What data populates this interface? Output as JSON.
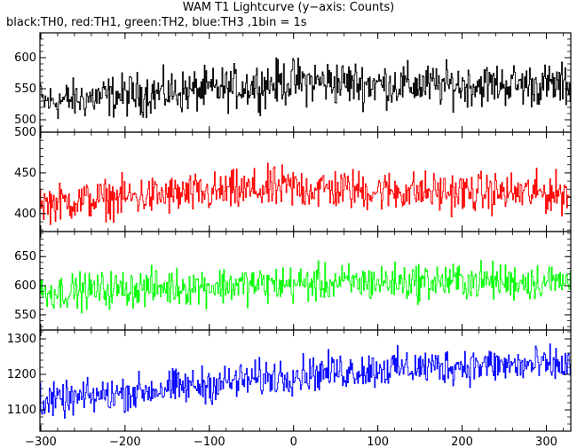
{
  "title": "WAM T1 Lightcurve (y−axis: Counts)",
  "subtitle": "black:TH0, red:TH1, green:TH2, blue:TH3 ,1bin = 1s",
  "chart_data": {
    "type": "line",
    "xlim": [
      -301,
      329
    ],
    "xticks": [
      "−300",
      "−200",
      "−100",
      "0",
      "100",
      "200",
      "300"
    ],
    "xtick_values": [
      -300,
      -200,
      -100,
      0,
      100,
      200,
      300
    ],
    "panels": [
      {
        "series": "TH0",
        "color": "#000000",
        "ylim": [
          480,
          640
        ],
        "yticks": [
          500,
          550,
          600
        ],
        "ytick_labels": [
          "500",
          "550",
          "600"
        ],
        "profile": [
          {
            "x": -300,
            "mean": 528,
            "amp": 25
          },
          {
            "x": -200,
            "mean": 540,
            "amp": 28
          },
          {
            "x": -100,
            "mean": 548,
            "amp": 28
          },
          {
            "x": 0,
            "mean": 562,
            "amp": 30
          },
          {
            "x": 50,
            "mean": 560,
            "amp": 30
          },
          {
            "x": 150,
            "mean": 555,
            "amp": 28
          },
          {
            "x": 250,
            "mean": 557,
            "amp": 28
          },
          {
            "x": 329,
            "mean": 555,
            "amp": 28
          }
        ]
      },
      {
        "series": "TH1",
        "color": "#ff0000",
        "ylim": [
          378,
          500
        ],
        "yticks": [
          400,
          450,
          500
        ],
        "ytick_labels": [
          "400",
          "450",
          "500"
        ],
        "profile": [
          {
            "x": -300,
            "mean": 412,
            "amp": 18
          },
          {
            "x": -200,
            "mean": 420,
            "amp": 20
          },
          {
            "x": -100,
            "mean": 425,
            "amp": 20
          },
          {
            "x": 0,
            "mean": 432,
            "amp": 22
          },
          {
            "x": 100,
            "mean": 428,
            "amp": 20
          },
          {
            "x": 200,
            "mean": 426,
            "amp": 20
          },
          {
            "x": 329,
            "mean": 425,
            "amp": 20
          }
        ]
      },
      {
        "series": "TH2",
        "color": "#00ff00",
        "ylim": [
          524,
          693
        ],
        "yticks": [
          550,
          600,
          650
        ],
        "ytick_labels": [
          "550",
          "600",
          "650"
        ],
        "profile": [
          {
            "x": -300,
            "mean": 588,
            "amp": 24
          },
          {
            "x": -200,
            "mean": 595,
            "amp": 26
          },
          {
            "x": -100,
            "mean": 600,
            "amp": 26
          },
          {
            "x": 0,
            "mean": 603,
            "amp": 26
          },
          {
            "x": 100,
            "mean": 606,
            "amp": 26
          },
          {
            "x": 200,
            "mean": 608,
            "amp": 26
          },
          {
            "x": 329,
            "mean": 607,
            "amp": 26
          }
        ]
      },
      {
        "series": "TH3",
        "color": "#0000ff",
        "ylim": [
          1040,
          1325
        ],
        "yticks": [
          1100,
          1200,
          1300
        ],
        "ytick_labels": [
          "1100",
          "1200",
          "1300"
        ],
        "profile": [
          {
            "x": -300,
            "mean": 1120,
            "amp": 38
          },
          {
            "x": -200,
            "mean": 1148,
            "amp": 40
          },
          {
            "x": -100,
            "mean": 1172,
            "amp": 42
          },
          {
            "x": 0,
            "mean": 1200,
            "amp": 42
          },
          {
            "x": 100,
            "mean": 1215,
            "amp": 42
          },
          {
            "x": 200,
            "mean": 1225,
            "amp": 42
          },
          {
            "x": 329,
            "mean": 1225,
            "amp": 42
          }
        ]
      }
    ]
  }
}
